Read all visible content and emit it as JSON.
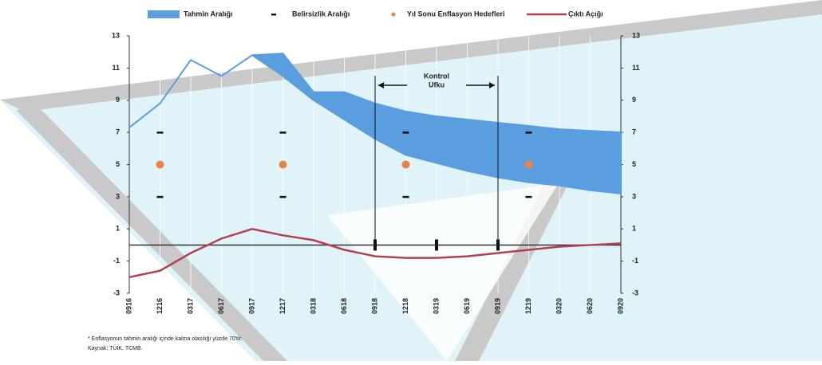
{
  "chart_data": {
    "type": "line",
    "categories": [
      "0916",
      "1216",
      "0317",
      "0617",
      "0917",
      "1217",
      "0318",
      "0618",
      "0918",
      "1218",
      "0319",
      "0619",
      "0919",
      "1219",
      "0320",
      "0620",
      "0920"
    ],
    "series": [
      {
        "name": "Tahmin Aralığı",
        "color": "#5a9ee0",
        "values_low": [
          7.3,
          8.8,
          11.5,
          10.5,
          11.8,
          10.5,
          9.0,
          7.8,
          6.6,
          5.6,
          5.1,
          4.6,
          4.2,
          3.9,
          3.7,
          3.4,
          3.2
        ],
        "values_high": [
          7.3,
          8.8,
          11.5,
          10.5,
          11.8,
          11.9,
          9.5,
          9.5,
          8.8,
          8.3,
          8.0,
          7.8,
          7.6,
          7.4,
          7.2,
          7.1,
          7.0
        ]
      },
      {
        "name": "Belirsizlik Aralığı",
        "color": "#111111",
        "values_low": [
          null,
          3,
          null,
          null,
          null,
          3,
          null,
          null,
          null,
          3,
          null,
          null,
          null,
          3,
          null,
          null,
          null
        ],
        "values_high": [
          null,
          7,
          null,
          null,
          null,
          7,
          null,
          null,
          null,
          7,
          null,
          null,
          null,
          7,
          null,
          null,
          null
        ]
      },
      {
        "name": "Yıl Sonu Enflasyon Hedefleri",
        "color": "#e8834a",
        "values": [
          null,
          5,
          null,
          null,
          null,
          5,
          null,
          null,
          null,
          5,
          null,
          null,
          null,
          5,
          null,
          null,
          null
        ]
      },
      {
        "name": "Çıktı Açığı",
        "color": "#b2404f",
        "values": [
          -2.0,
          -1.6,
          -0.5,
          0.4,
          1.0,
          0.6,
          0.3,
          -0.3,
          -0.7,
          -0.8,
          -0.8,
          -0.7,
          -0.5,
          -0.3,
          -0.1,
          0.0,
          0.1
        ]
      }
    ],
    "ylim": [
      -3,
      13
    ],
    "yticks": [
      -3,
      -1,
      1,
      3,
      5,
      7,
      9,
      11,
      13
    ],
    "y2lim": [
      -3,
      13
    ],
    "y2ticks": [
      -3,
      -1,
      1,
      3,
      5,
      7,
      9,
      11,
      13
    ],
    "annotation": {
      "line1": "Kontrol",
      "line2": "Ufku",
      "from": "0918",
      "to": "0919"
    },
    "footnote": "* Enflasyonun tahmin aralığı içinde kalma olasılığı yüzde 70'tir.",
    "source": "Kaynak: TÜİK, TCMB."
  }
}
